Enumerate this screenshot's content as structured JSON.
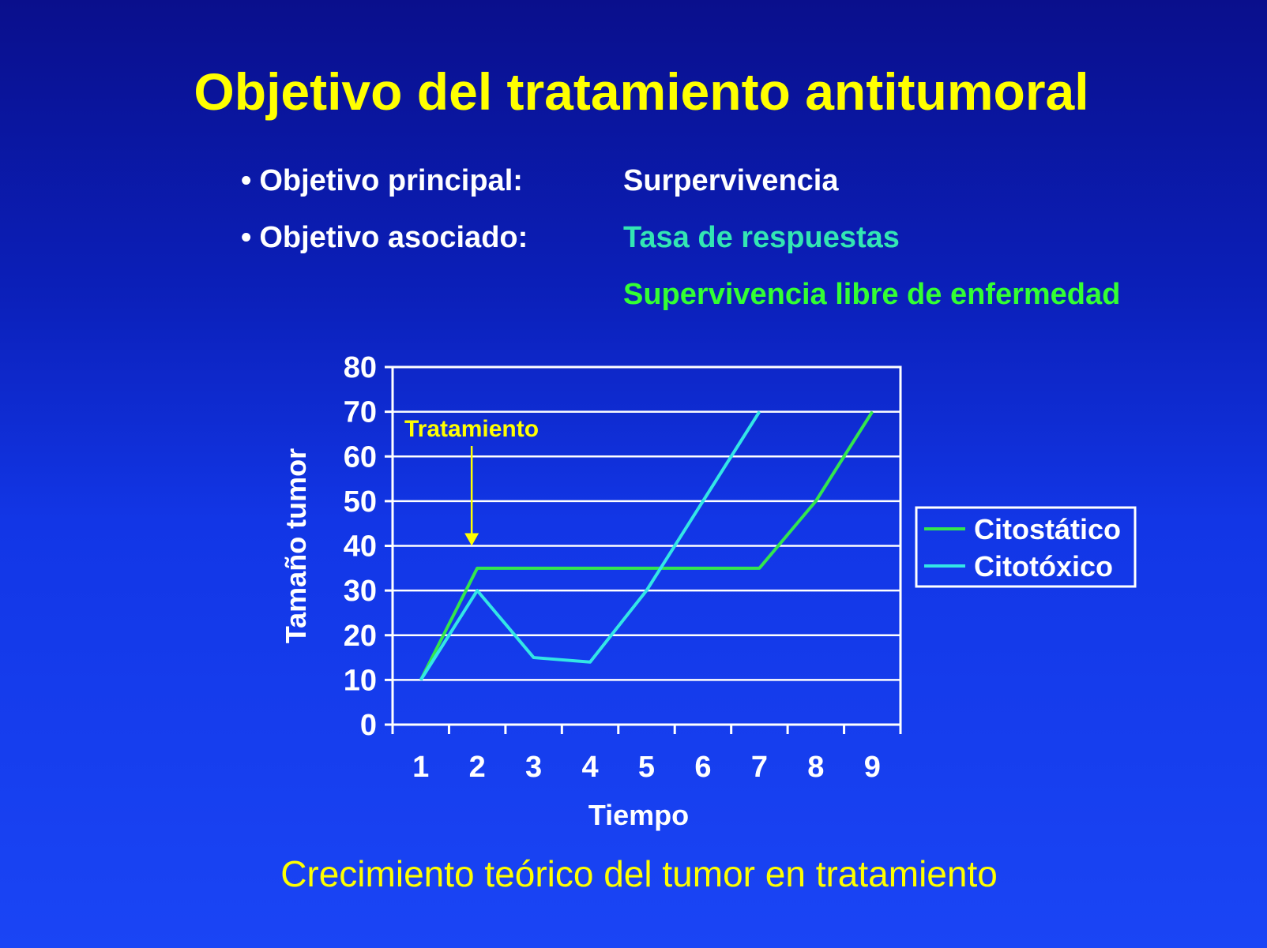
{
  "title": "Objetivo del tratamiento antitumoral",
  "objectives": {
    "principal_label": "Objetivo principal:",
    "principal_value": "Surpervivencia",
    "asociado_label": "Objetivo asociado:",
    "asociado_value_1": "Tasa de respuestas",
    "asociado_value_2": "Supervivencia libre de enfermedad",
    "colors": {
      "principal": "#ffffff",
      "asociado_1": "#33e6b3",
      "asociado_2": "#33ff33"
    }
  },
  "caption": "Crecimiento teórico del tumor en tratamiento",
  "chart_data": {
    "type": "line",
    "categories": [
      "1",
      "2",
      "3",
      "4",
      "5",
      "6",
      "7",
      "8",
      "9"
    ],
    "ylabel": "Tamaño tumor",
    "xlabel": "Tiempo",
    "ylim": [
      0,
      80
    ],
    "yticks": [
      "0",
      "10",
      "20",
      "30",
      "40",
      "50",
      "60",
      "70",
      "80"
    ],
    "grid": true,
    "legend": "right",
    "annotation": {
      "text": "Tratamiento",
      "x": "2",
      "y": 40,
      "color": "#ffff00"
    },
    "series": [
      {
        "name": "Citostático",
        "color": "#33e64d",
        "values": [
          10,
          35,
          35,
          35,
          35,
          35,
          35,
          50,
          70
        ]
      },
      {
        "name": "Citotóxico",
        "color": "#33e6e6",
        "values": [
          10,
          30,
          15,
          14,
          30,
          50,
          70,
          null,
          null
        ]
      }
    ]
  }
}
